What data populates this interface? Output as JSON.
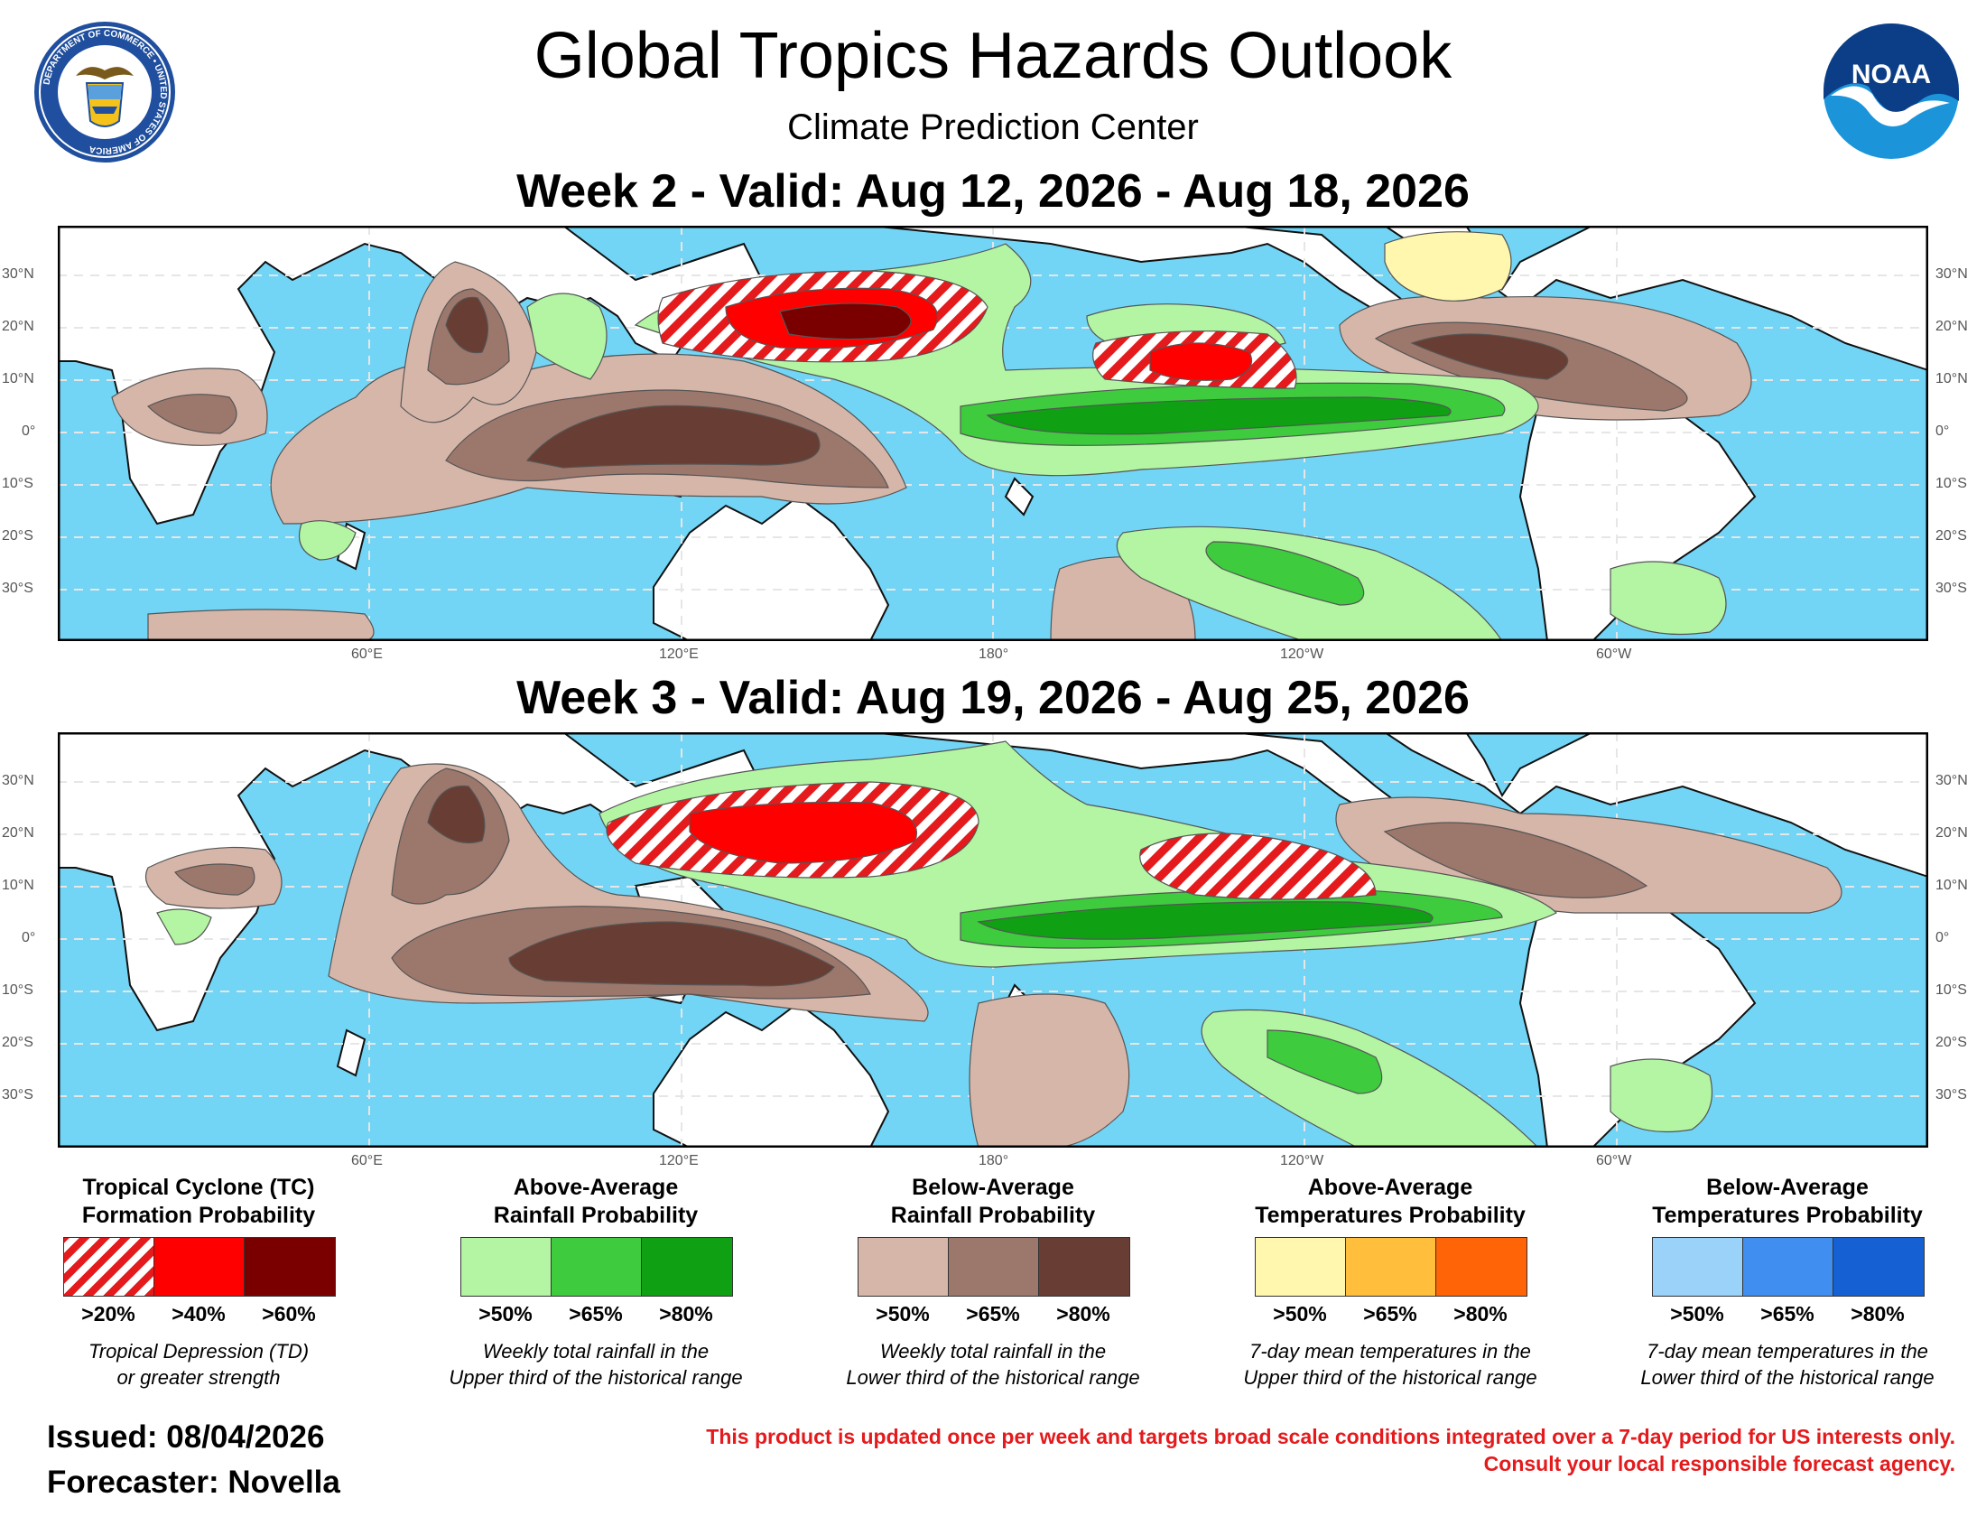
{
  "header": {
    "title": "Global Tropics Hazards Outlook",
    "subtitle": "Climate Prediction Center",
    "left_logo": "department-of-commerce-seal",
    "left_logo_text": "DEPARTMENT OF COMMERCE • UNITED STATES OF AMERICA",
    "right_logo": "noaa-logo",
    "right_logo_text": "NOAA"
  },
  "maps": [
    {
      "heading": "Week 2 - Valid: Aug 12, 2026 - Aug 18, 2026"
    },
    {
      "heading": "Week 3 - Valid: Aug 19, 2026 - Aug 25, 2026"
    }
  ],
  "axes": {
    "lat_labels": [
      "30°N",
      "20°N",
      "10°N",
      "0°",
      "10°S",
      "20°S",
      "30°S"
    ],
    "lon_labels": [
      "60°E",
      "120°E",
      "180°",
      "120°W",
      "60°W"
    ]
  },
  "legend": [
    {
      "title_lines": [
        "Tropical Cyclone (TC)",
        "Formation Probability"
      ],
      "labels": [
        ">20%",
        ">40%",
        ">60%"
      ],
      "colors": [
        "#e41a1c",
        "#ff0000",
        "#7a0000"
      ],
      "hatched_first": true,
      "note_lines": [
        "Tropical Depression (TD)",
        "or greater strength"
      ]
    },
    {
      "title_lines": [
        "Above-Average",
        "Rainfall Probability"
      ],
      "labels": [
        ">50%",
        ">65%",
        ">80%"
      ],
      "colors": [
        "#b3f5a3",
        "#3ecb3e",
        "#0fa014"
      ],
      "hatched_first": false,
      "note_lines": [
        "Weekly total rainfall in the",
        "Upper third of the historical range"
      ]
    },
    {
      "title_lines": [
        "Below-Average",
        "Rainfall Probability"
      ],
      "labels": [
        ">50%",
        ">65%",
        ">80%"
      ],
      "colors": [
        "#d7b6aa",
        "#9c776c",
        "#683d33"
      ],
      "hatched_first": false,
      "note_lines": [
        "Weekly total rainfall in the",
        "Lower third of the historical range"
      ]
    },
    {
      "title_lines": [
        "Above-Average",
        "Temperatures Probability"
      ],
      "labels": [
        ">50%",
        ">65%",
        ">80%"
      ],
      "colors": [
        "#fff7ae",
        "#ffbe3b",
        "#ff6406"
      ],
      "hatched_first": false,
      "note_lines": [
        "7-day mean temperatures in the",
        "Upper third of the historical range"
      ]
    },
    {
      "title_lines": [
        "Below-Average",
        "Temperatures Probability"
      ],
      "labels": [
        ">50%",
        ">65%",
        ">80%"
      ],
      "colors": [
        "#9bd2f9",
        "#3f8ef0",
        "#1561d4"
      ],
      "hatched_first": false,
      "note_lines": [
        "7-day mean temperatures in the",
        "Lower third of the historical range"
      ]
    }
  ],
  "footer": {
    "issued": "Issued: 08/04/2026",
    "forecaster": "Forecaster: Novella",
    "disclaimer_lines": [
      "This product is updated once per week and targets broad scale conditions integrated over a 7-day period for US interests only.",
      "Consult your local responsible forecast agency."
    ]
  },
  "colors": {
    "ocean": "#72d5f5",
    "land": "#ffffff",
    "grid": "#e6e6e6"
  }
}
